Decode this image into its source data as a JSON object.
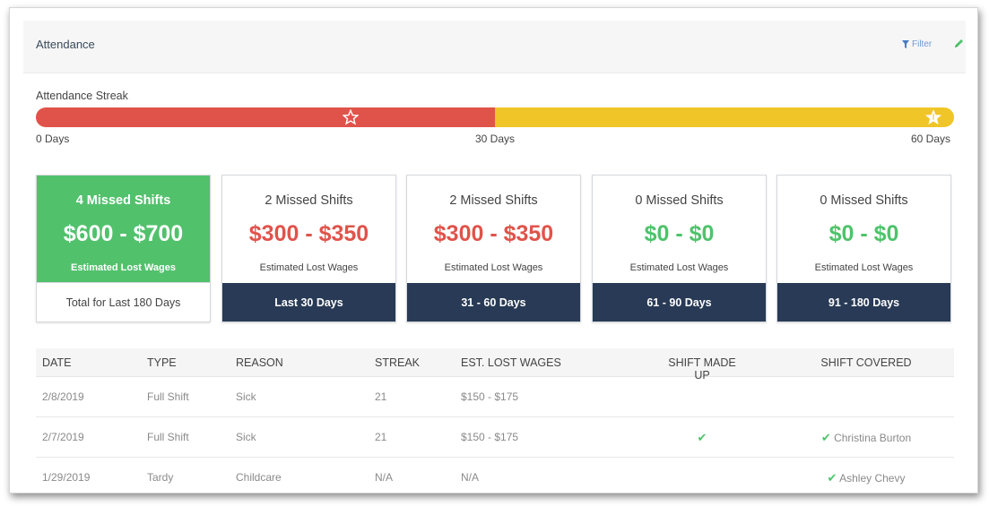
{
  "panel": {
    "title": "Attendance",
    "filter_label": "Filter",
    "filter_icon": "filter-icon",
    "edit_icon": "pencil-icon"
  },
  "streak": {
    "label": "Attendance Streak",
    "progress_fraction": 0.5,
    "colors": {
      "completed": "#e0534a",
      "remaining": "#f0c528"
    },
    "ticks": [
      "0 Days",
      "30 Days",
      "60 Days"
    ],
    "milestone_icons": [
      "star-outline-icon",
      "star-icon"
    ]
  },
  "cards": [
    {
      "missed": "4 Missed Shifts",
      "range": "$600 - $700",
      "sub": "Estimated Lost Wages",
      "period": "Total for Last 180 Days"
    },
    {
      "missed": "2 Missed Shifts",
      "range": "$300 - $350",
      "sub": "Estimated Lost Wages",
      "period": "Last 30 Days"
    },
    {
      "missed": "2 Missed Shifts",
      "range": "$300 - $350",
      "sub": "Estimated Lost Wages",
      "period": "31 - 60 Days"
    },
    {
      "missed": "0 Missed Shifts",
      "range": "$0 - $0",
      "sub": "Estimated Lost Wages",
      "period": "61 - 90 Days"
    },
    {
      "missed": "0 Missed Shifts",
      "range": "$0 - $0",
      "sub": "Estimated Lost Wages",
      "period": "91 - 180 Days"
    }
  ],
  "table": {
    "headers": [
      "DATE",
      "TYPE",
      "REASON",
      "STREAK",
      "EST. LOST WAGES",
      "SHIFT MADE UP",
      "SHIFT COVERED"
    ],
    "rows": [
      {
        "date": "2/8/2019",
        "type": "Full Shift",
        "reason": "Sick",
        "streak": "21",
        "wages": "$150 - $175",
        "made_up": "",
        "covered": ""
      },
      {
        "date": "2/7/2019",
        "type": "Full Shift",
        "reason": "Sick",
        "streak": "21",
        "wages": "$150 - $175",
        "made_up": "✔",
        "covered": "Christina Burton"
      },
      {
        "date": "1/29/2019",
        "type": "Tardy",
        "reason": "Childcare",
        "streak": "N/A",
        "wages": "N/A",
        "made_up": "",
        "covered": "Ashley Chevy"
      }
    ]
  },
  "colors": {
    "highlight": "#52c16c",
    "dark_navy": "#283a55",
    "loss_red": "#e0534a",
    "ok_green": "#4ec36a"
  }
}
